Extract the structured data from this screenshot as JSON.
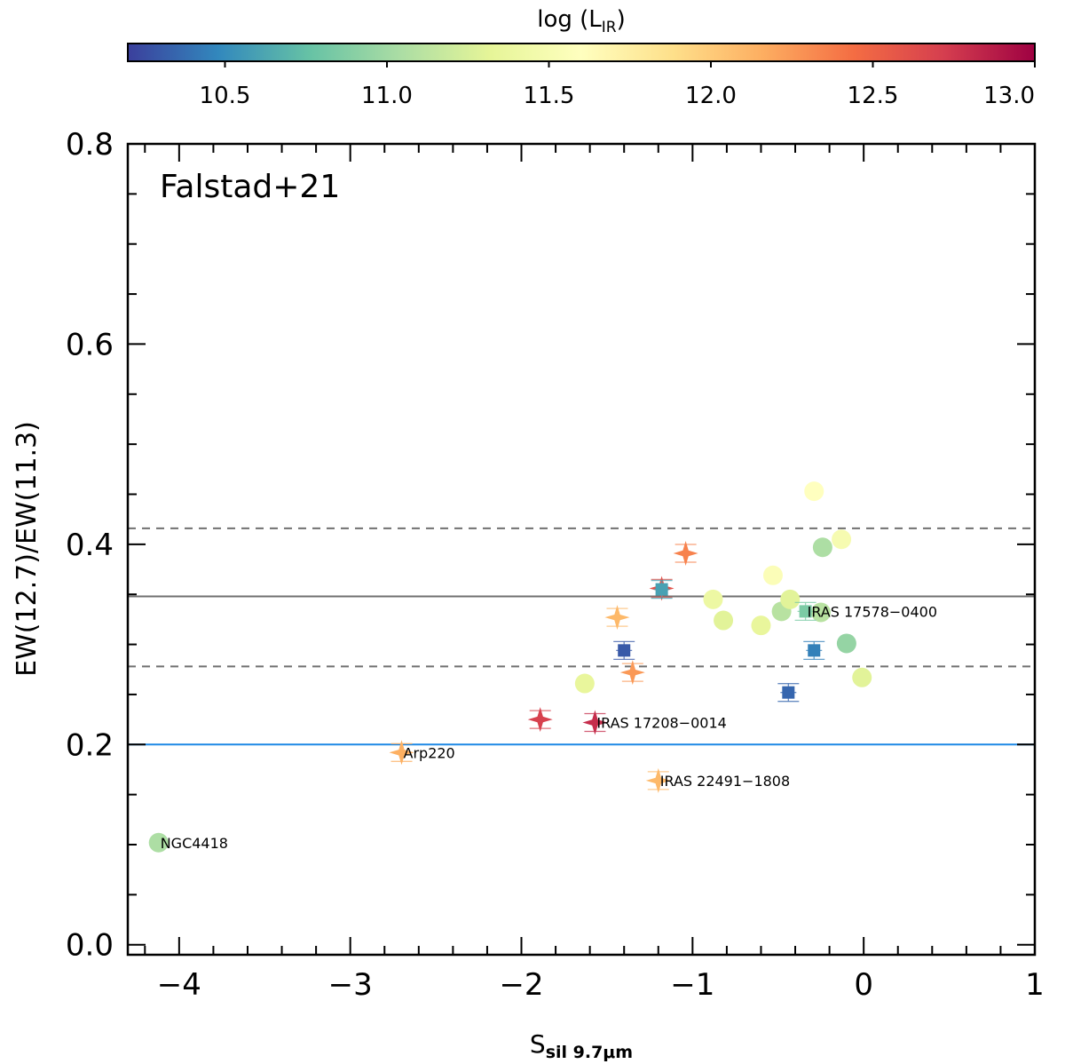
{
  "chart_data": {
    "type": "scatter",
    "panel_label": "Falstad+21",
    "xlabel_main": "S",
    "xlabel_sub": "sil 9.7μm",
    "ylabel": "EW(12.7)/EW(11.3)",
    "xlim": [
      -4.3,
      1.0
    ],
    "ylim": [
      -0.01,
      0.8
    ],
    "xticks": [
      -4,
      -3,
      -2,
      -1,
      0,
      1
    ],
    "xtick_labels": [
      "−4",
      "−3",
      "−2",
      "−1",
      "0",
      "1"
    ],
    "yticks": [
      0.0,
      0.2,
      0.4,
      0.6,
      0.8
    ],
    "ytick_labels": [
      "0.0",
      "0.2",
      "0.4",
      "0.6",
      "0.8"
    ],
    "grid": false,
    "colorbar": {
      "label_main": "log (L",
      "label_sub": "IR",
      "label_close": ")",
      "range": [
        10.2,
        13.0
      ],
      "ticks": [
        10.5,
        11.0,
        11.5,
        12.0,
        12.5,
        13.0
      ],
      "tick_labels": [
        "10.5",
        "11.0",
        "11.5",
        "12.0",
        "12.5",
        "13.0"
      ],
      "colormap": "Spectral_r",
      "position": "top"
    },
    "reference_lines": [
      {
        "y": 0.348,
        "style": "solid",
        "color": "#707070"
      },
      {
        "y": 0.416,
        "style": "dashed",
        "color": "#707070"
      },
      {
        "y": 0.278,
        "style": "dashed",
        "color": "#707070"
      },
      {
        "y": 0.2,
        "style": "solid",
        "color": "#1e88e5"
      }
    ],
    "points": [
      {
        "x": -4.12,
        "y": 0.102,
        "logLIR": 11.05,
        "marker": "circle",
        "label": "NGC4418"
      },
      {
        "x": -2.7,
        "y": 0.192,
        "logLIR": 12.15,
        "marker": "star",
        "label": "Arp220"
      },
      {
        "x": -1.89,
        "y": 0.225,
        "logLIR": 12.7,
        "marker": "star"
      },
      {
        "x": -1.57,
        "y": 0.222,
        "logLIR": 12.8,
        "marker": "star",
        "label": "IRAS 17208−0014"
      },
      {
        "x": -1.2,
        "y": 0.164,
        "logLIR": 12.1,
        "marker": "star",
        "label": "IRAS 22491−1808"
      },
      {
        "x": -1.35,
        "y": 0.272,
        "logLIR": 12.25,
        "marker": "star"
      },
      {
        "x": -1.44,
        "y": 0.327,
        "logLIR": 12.1,
        "marker": "star"
      },
      {
        "x": -1.18,
        "y": 0.356,
        "logLIR": 12.6,
        "marker": "star"
      },
      {
        "x": -1.04,
        "y": 0.391,
        "logLIR": 12.35,
        "marker": "star"
      },
      {
        "x": -1.63,
        "y": 0.261,
        "logLIR": 11.35,
        "marker": "circle"
      },
      {
        "x": -0.88,
        "y": 0.345,
        "logLIR": 11.4,
        "marker": "circle"
      },
      {
        "x": -0.82,
        "y": 0.324,
        "logLIR": 11.3,
        "marker": "circle"
      },
      {
        "x": -0.6,
        "y": 0.319,
        "logLIR": 11.35,
        "marker": "circle"
      },
      {
        "x": -0.53,
        "y": 0.369,
        "logLIR": 11.55,
        "marker": "circle"
      },
      {
        "x": -0.48,
        "y": 0.333,
        "logLIR": 11.1,
        "marker": "circle"
      },
      {
        "x": -0.43,
        "y": 0.345,
        "logLIR": 11.3,
        "marker": "circle"
      },
      {
        "x": -0.29,
        "y": 0.453,
        "logLIR": 11.6,
        "marker": "circle"
      },
      {
        "x": -0.24,
        "y": 0.397,
        "logLIR": 11.05,
        "marker": "circle"
      },
      {
        "x": -0.25,
        "y": 0.332,
        "logLIR": 11.1,
        "marker": "circle"
      },
      {
        "x": -0.13,
        "y": 0.405,
        "logLIR": 11.5,
        "marker": "circle"
      },
      {
        "x": -0.1,
        "y": 0.301,
        "logLIR": 10.95,
        "marker": "circle"
      },
      {
        "x": -0.01,
        "y": 0.267,
        "logLIR": 11.3,
        "marker": "circle"
      },
      {
        "x": -1.4,
        "y": 0.294,
        "logLIR": 10.3,
        "marker": "square"
      },
      {
        "x": -1.18,
        "y": 0.355,
        "logLIR": 10.6,
        "marker": "square"
      },
      {
        "x": -0.34,
        "y": 0.333,
        "logLIR": 10.85,
        "marker": "square",
        "label": "IRAS 17578−0400"
      },
      {
        "x": -0.29,
        "y": 0.294,
        "logLIR": 10.45,
        "marker": "square"
      },
      {
        "x": -0.44,
        "y": 0.252,
        "logLIR": 10.35,
        "marker": "square"
      }
    ]
  }
}
